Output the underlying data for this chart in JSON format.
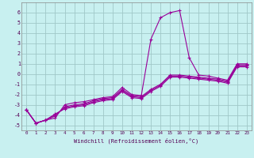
{
  "xlabel": "Windchill (Refroidissement éolien,°C)",
  "bg_color": "#c8f0f0",
  "grid_color": "#a0c8c8",
  "line_color": "#990099",
  "xlim": [
    -0.5,
    23.5
  ],
  "ylim": [
    -5.5,
    7.0
  ],
  "xticks": [
    0,
    1,
    2,
    3,
    4,
    5,
    6,
    7,
    8,
    9,
    10,
    11,
    12,
    13,
    14,
    15,
    16,
    17,
    18,
    19,
    20,
    21,
    22,
    23
  ],
  "yticks": [
    -5,
    -4,
    -3,
    -2,
    -1,
    0,
    1,
    2,
    3,
    4,
    5,
    6
  ],
  "series": [
    [
      0,
      -3.5
    ],
    [
      1,
      -4.8
    ],
    [
      2,
      -4.5
    ],
    [
      3,
      -4.3
    ],
    [
      4,
      -3.0
    ],
    [
      5,
      -2.8
    ],
    [
      6,
      -2.7
    ],
    [
      7,
      -2.5
    ],
    [
      8,
      -2.3
    ],
    [
      9,
      -2.2
    ],
    [
      10,
      -1.3
    ],
    [
      11,
      -2.0
    ],
    [
      12,
      -2.1
    ],
    [
      13,
      3.4
    ],
    [
      14,
      5.5
    ],
    [
      15,
      6.0
    ],
    [
      16,
      6.2
    ],
    [
      17,
      1.6
    ],
    [
      18,
      -0.1
    ],
    [
      19,
      -0.2
    ],
    [
      20,
      -0.4
    ],
    [
      21,
      -0.6
    ],
    [
      22,
      1.0
    ],
    [
      23,
      1.0
    ]
  ],
  "series2": [
    [
      0,
      -3.5
    ],
    [
      1,
      -4.8
    ],
    [
      2,
      -4.5
    ],
    [
      3,
      -4.1
    ],
    [
      4,
      -3.2
    ],
    [
      5,
      -3.0
    ],
    [
      6,
      -2.9
    ],
    [
      7,
      -2.6
    ],
    [
      8,
      -2.4
    ],
    [
      9,
      -2.3
    ],
    [
      10,
      -1.5
    ],
    [
      11,
      -2.1
    ],
    [
      12,
      -2.2
    ],
    [
      13,
      -1.5
    ],
    [
      14,
      -1.0
    ],
    [
      15,
      -0.1
    ],
    [
      16,
      -0.1
    ],
    [
      17,
      -0.2
    ],
    [
      18,
      -0.3
    ],
    [
      19,
      -0.4
    ],
    [
      20,
      -0.5
    ],
    [
      21,
      -0.7
    ],
    [
      22,
      0.9
    ],
    [
      23,
      0.9
    ]
  ],
  "series3": [
    [
      0,
      -3.5
    ],
    [
      1,
      -4.8
    ],
    [
      2,
      -4.5
    ],
    [
      3,
      -4.0
    ],
    [
      4,
      -3.3
    ],
    [
      5,
      -3.1
    ],
    [
      6,
      -3.0
    ],
    [
      7,
      -2.7
    ],
    [
      8,
      -2.5
    ],
    [
      9,
      -2.4
    ],
    [
      10,
      -1.6
    ],
    [
      11,
      -2.2
    ],
    [
      12,
      -2.3
    ],
    [
      13,
      -1.6
    ],
    [
      14,
      -1.1
    ],
    [
      15,
      -0.2
    ],
    [
      16,
      -0.2
    ],
    [
      17,
      -0.3
    ],
    [
      18,
      -0.4
    ],
    [
      19,
      -0.5
    ],
    [
      20,
      -0.6
    ],
    [
      21,
      -0.8
    ],
    [
      22,
      0.8
    ],
    [
      23,
      0.8
    ]
  ],
  "series4": [
    [
      0,
      -3.5
    ],
    [
      1,
      -4.8
    ],
    [
      2,
      -4.5
    ],
    [
      3,
      -3.9
    ],
    [
      4,
      -3.4
    ],
    [
      5,
      -3.2
    ],
    [
      6,
      -3.1
    ],
    [
      7,
      -2.8
    ],
    [
      8,
      -2.6
    ],
    [
      9,
      -2.5
    ],
    [
      10,
      -1.7
    ],
    [
      11,
      -2.3
    ],
    [
      12,
      -2.4
    ],
    [
      13,
      -1.7
    ],
    [
      14,
      -1.2
    ],
    [
      15,
      -0.3
    ],
    [
      16,
      -0.3
    ],
    [
      17,
      -0.4
    ],
    [
      18,
      -0.5
    ],
    [
      19,
      -0.6
    ],
    [
      20,
      -0.7
    ],
    [
      21,
      -0.9
    ],
    [
      22,
      0.7
    ],
    [
      23,
      0.7
    ]
  ]
}
